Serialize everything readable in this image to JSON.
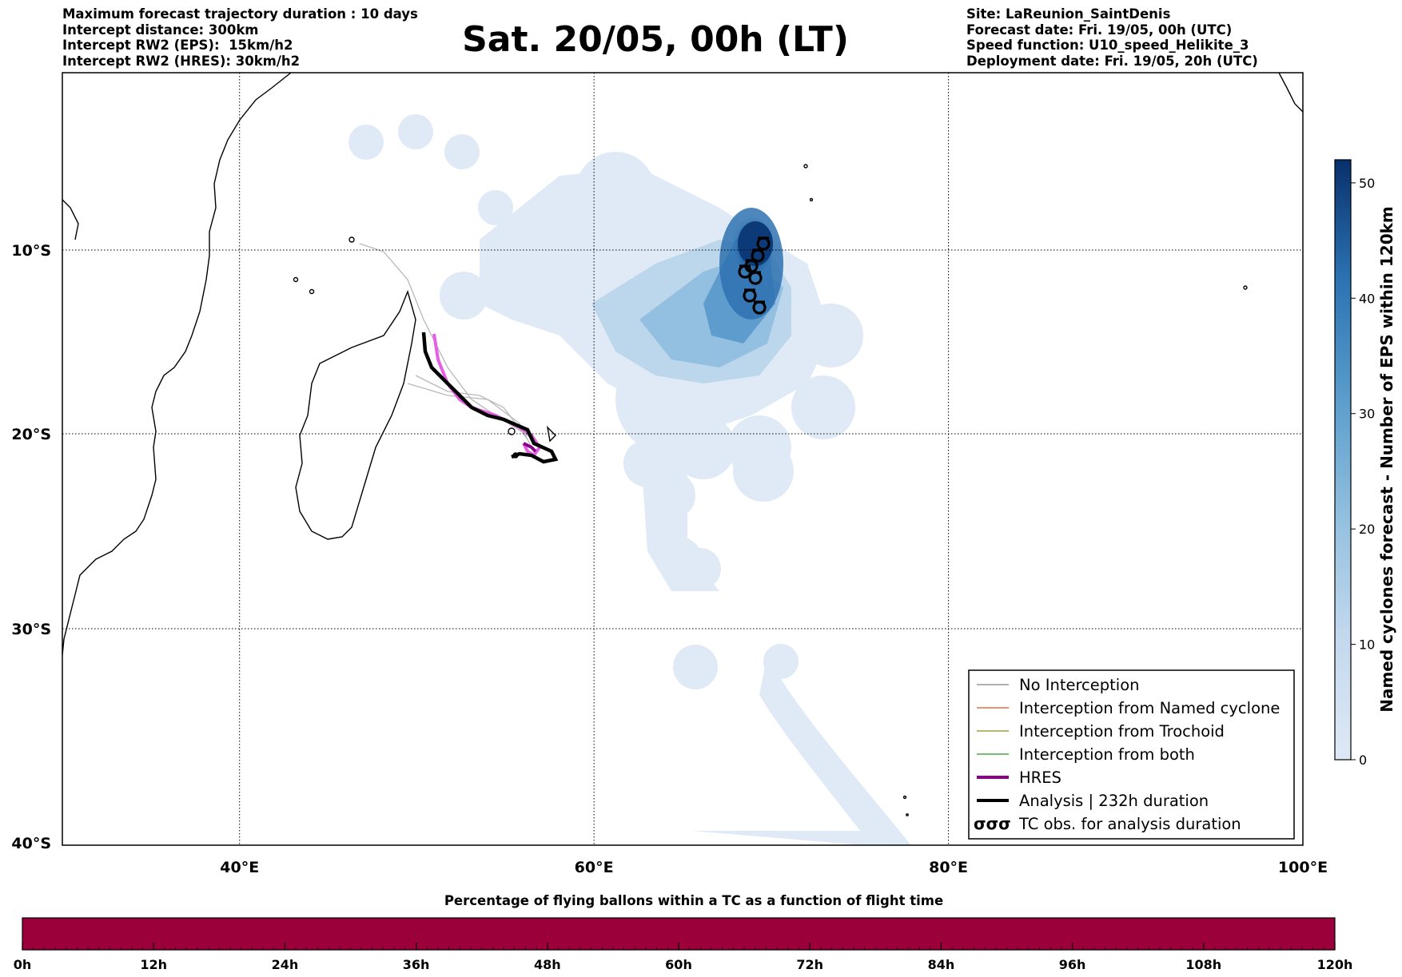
{
  "header": {
    "left_lines": [
      "Maximum forecast trajectory duration : 10 days",
      "Intercept distance: 300km",
      "Intercept RW2 (EPS):  15km/h2",
      "Intercept RW2 (HRES): 30km/h2"
    ],
    "title": "Sat. 20/05, 00h (LT)",
    "right_lines": [
      "Site: LaReunion_SaintDenis",
      "Forecast date: Fri. 19/05, 00h (UTC)",
      "Speed function: U10_speed_Helikite_3",
      "Deployment date: Fri. 19/05, 20h (UTC)"
    ]
  },
  "map": {
    "lat_labels": [
      "10°S",
      "20°S",
      "30°S",
      "40°S"
    ],
    "lon_labels": [
      "40°E",
      "60°E",
      "80°E",
      "100°E"
    ],
    "extent": {
      "lon_min": 30,
      "lon_max": 100,
      "lat_top": 0.5,
      "lat_bottom": -40.1
    }
  },
  "legend": {
    "items": [
      {
        "label": "No Interception",
        "color": "#808080",
        "style": "thin-line"
      },
      {
        "label": "Interception from Named cyclone",
        "color": "#e0501a",
        "style": "thin-line"
      },
      {
        "label": "Interception from Trochoid",
        "color": "#8c8c1a",
        "style": "thin-line"
      },
      {
        "label": "Interception from both",
        "color": "#1f9a1f",
        "style": "thin-line"
      },
      {
        "label": "HRES",
        "color": "#8b008b",
        "style": "thick-line"
      },
      {
        "label": "Analysis | 232h duration",
        "color": "#000000",
        "style": "thick-line"
      },
      {
        "label": "TC obs. for analysis duration",
        "color": "#000000",
        "style": "tc-symbol",
        "symbol": "σσσ"
      }
    ]
  },
  "colorbar_right": {
    "label": "Named cyclones forecast - Number of EPS within 120km",
    "ticks": [
      "0",
      "10",
      "20",
      "30",
      "40",
      "50"
    ],
    "max": 52,
    "color_low": "#dee9f6",
    "color_high": "#08306b"
  },
  "colorbar_bottom": {
    "title": "Percentage of flying ballons within a TC as a function of flight time",
    "ticks": [
      "0h",
      "12h",
      "24h",
      "36h",
      "48h",
      "60h",
      "72h",
      "84h",
      "96h",
      "108h",
      "120h"
    ],
    "fill_color": "#9b003a",
    "value": 1.0
  },
  "tracks": {
    "hres_color": "#e55fe5",
    "hres_dark_color": "#8b008b",
    "analysis_color": "#000000",
    "no_interception_color": "#a0a0a0"
  }
}
